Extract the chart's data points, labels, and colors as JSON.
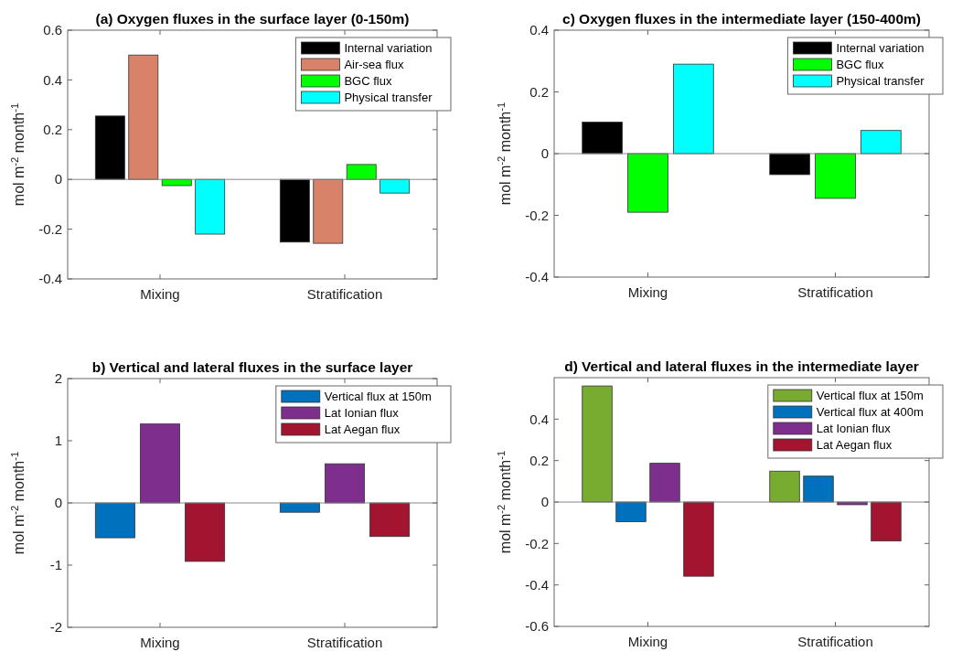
{
  "chart_data": [
    {
      "type": "bar",
      "title": "(a) Oxygen fluxes in the surface layer (0-150m)",
      "ylabel": "mol m$^{-2}$ month$^{-1}$",
      "categories": [
        "Mixing",
        "Stratification"
      ],
      "ylim": [
        -0.4,
        0.6
      ],
      "yticks": [
        -0.4,
        -0.2,
        0,
        0.2,
        0.4,
        0.6
      ],
      "legend": "top right",
      "series": [
        {
          "name": "Internal variation",
          "color": "#000000",
          "values": [
            0.255,
            -0.252
          ]
        },
        {
          "name": "Air-sea flux",
          "color": "#d9826a",
          "values": [
            0.5,
            -0.257
          ]
        },
        {
          "name": "BGC flux",
          "color": "#00ff00",
          "values": [
            -0.025,
            0.06
          ]
        },
        {
          "name": "Physical transfer",
          "color": "#00ffff",
          "values": [
            -0.22,
            -0.055
          ]
        }
      ]
    },
    {
      "type": "bar",
      "title": "c) Oxygen fluxes in the intermediate layer (150-400m)",
      "ylabel": "mol m$^{-2}$ month$^{-1}$",
      "categories": [
        "Mixing",
        "Stratification"
      ],
      "ylim": [
        -0.4,
        0.4
      ],
      "yticks": [
        -0.4,
        -0.2,
        0,
        0.2,
        0.4
      ],
      "legend": "top right",
      "series": [
        {
          "name": "Internal variation",
          "color": "#000000",
          "values": [
            0.102,
            -0.068
          ]
        },
        {
          "name": "BGC flux",
          "color": "#00ff00",
          "values": [
            -0.19,
            -0.145
          ]
        },
        {
          "name": "Physical transfer",
          "color": "#00ffff",
          "values": [
            0.29,
            0.075
          ]
        }
      ]
    },
    {
      "type": "bar",
      "title": "b) Vertical and lateral fluxes in the surface layer",
      "ylabel": "mol m$^{-2}$ month$^{-1}$",
      "categories": [
        "Mixing",
        "Stratification"
      ],
      "ylim": [
        -2,
        2
      ],
      "yticks": [
        -2,
        -1,
        0,
        1,
        2
      ],
      "legend": "top right",
      "series": [
        {
          "name": "Vertical flux at 150m",
          "color": "#0072bd",
          "values": [
            -0.56,
            -0.15
          ]
        },
        {
          "name": "Lat Ionian flux",
          "color": "#7e2f8e",
          "values": [
            1.27,
            0.63
          ]
        },
        {
          "name": "Lat Aegan flux",
          "color": "#a2142f",
          "values": [
            -0.94,
            -0.54
          ]
        }
      ]
    },
    {
      "type": "bar",
      "title": "d) Vertical and lateral fluxes in the intermediate layer",
      "ylabel": "mol m$^{-2}$ month$^{-1}$",
      "categories": [
        "Mixing",
        "Stratification"
      ],
      "ylim": [
        -0.6,
        0.6
      ],
      "yticks": [
        -0.6,
        -0.4,
        -0.2,
        0,
        0.2,
        0.4
      ],
      "legend": "top right",
      "series": [
        {
          "name": "Vertical flux at 150m",
          "color": "#77ac30",
          "values": [
            0.56,
            0.149
          ]
        },
        {
          "name": "Vertical flux at 400m",
          "color": "#0072bd",
          "values": [
            -0.095,
            0.125
          ]
        },
        {
          "name": "Lat Ionian flux",
          "color": "#7e2f8e",
          "values": [
            0.187,
            -0.013
          ]
        },
        {
          "name": "Lat Aegan flux",
          "color": "#a2142f",
          "values": [
            -0.358,
            -0.188
          ]
        }
      ]
    }
  ]
}
